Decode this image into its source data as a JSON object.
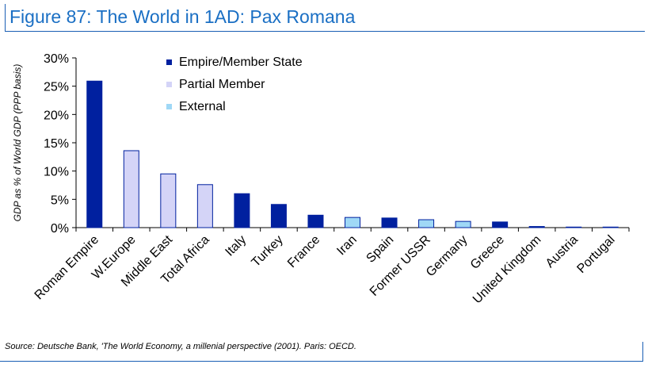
{
  "title": "Figure 87: The World in 1AD: Pax Romana",
  "source": "Source: Deutsche Bank, 'The World Economy, a millenial perspective (2001). Paris: OECD.",
  "colors": {
    "empire": "#00209f",
    "partial": "#d4d4f7",
    "external": "#9fd8f6",
    "frame": "#1a5fb4"
  },
  "chart_data": {
    "type": "bar",
    "title": "",
    "xlabel": "",
    "ylabel": "GDP as % of World GDP (PPP basis)",
    "ylim": [
      0,
      30
    ],
    "yticks": [
      "0%",
      "5%",
      "10%",
      "15%",
      "20%",
      "25%",
      "30%"
    ],
    "grid": false,
    "legend_position": "top-center",
    "categories": [
      "Roman Empire",
      "W.Europe",
      "Middle East",
      "Total Africa",
      "Italy",
      "Turkey",
      "France",
      "Iran",
      "Spain",
      "Former USSR",
      "Germany",
      "Greece",
      "United Kingdom",
      "Austria",
      "Portugal"
    ],
    "series": [
      {
        "name": "Empire/Member State",
        "color": "#00209f",
        "values": [
          25.9,
          null,
          null,
          null,
          6.0,
          4.1,
          2.2,
          null,
          1.7,
          null,
          null,
          1.0,
          0.2,
          0.1,
          0.1
        ]
      },
      {
        "name": "Partial Member",
        "color": "#d4d4f7",
        "values": [
          null,
          13.6,
          9.5,
          7.6,
          null,
          null,
          null,
          null,
          null,
          null,
          null,
          null,
          null,
          null,
          null
        ]
      },
      {
        "name": "External",
        "color": "#9fd8f6",
        "values": [
          null,
          null,
          null,
          null,
          null,
          null,
          null,
          1.8,
          null,
          1.4,
          1.1,
          null,
          null,
          null,
          null
        ]
      }
    ]
  }
}
